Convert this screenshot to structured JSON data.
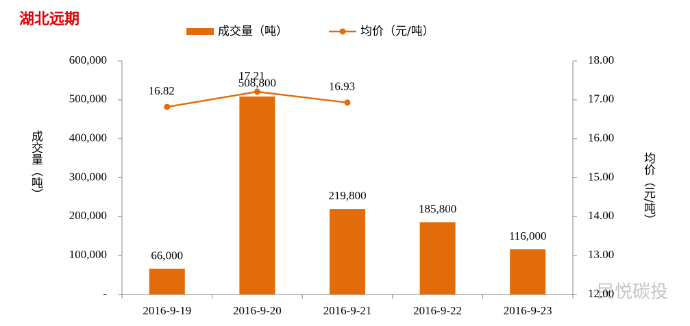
{
  "chart_data": {
    "type": "bar-line",
    "title": "湖北远期",
    "watermark": "民悦碳投",
    "ylabel": "成交量（吨）",
    "y2label": "均价（元/吨）",
    "categories": [
      "2016-9-19",
      "2016-9-20",
      "2016-9-21",
      "2016-9-22",
      "2016-9-23"
    ],
    "series": [
      {
        "name": "成交量（吨）",
        "type": "bar",
        "color": "#e36c0a",
        "axis": "y",
        "values": [
          66000,
          508800,
          219800,
          185800,
          116000
        ],
        "value_labels": [
          "66,000",
          "508,800",
          "219,800",
          "185,800",
          "116,000"
        ]
      },
      {
        "name": "均价（元/吨）",
        "type": "line",
        "color": "#e36c0a",
        "axis": "y2",
        "values": [
          16.82,
          17.21,
          16.93,
          null,
          null
        ]
      }
    ],
    "ylim": [
      0,
      600000
    ],
    "yticks": [
      {
        "value": 0,
        "label": "-"
      },
      {
        "value": 100000,
        "label": "100,000"
      },
      {
        "value": 200000,
        "label": "200,000"
      },
      {
        "value": 300000,
        "label": "300,000"
      },
      {
        "value": 400000,
        "label": "400,000"
      },
      {
        "value": 500000,
        "label": "500,000"
      },
      {
        "value": 600000,
        "label": "600,000"
      }
    ],
    "y2lim": [
      12,
      18
    ],
    "y2ticks": [
      {
        "value": 12,
        "label": "12.00"
      },
      {
        "value": 13,
        "label": "13.00"
      },
      {
        "value": 14,
        "label": "14.00"
      },
      {
        "value": 15,
        "label": "15.00"
      },
      {
        "value": 16,
        "label": "16.00"
      },
      {
        "value": 17,
        "label": "17.00"
      },
      {
        "value": 18,
        "label": "18.00"
      }
    ],
    "grid": false,
    "legend": "top"
  }
}
